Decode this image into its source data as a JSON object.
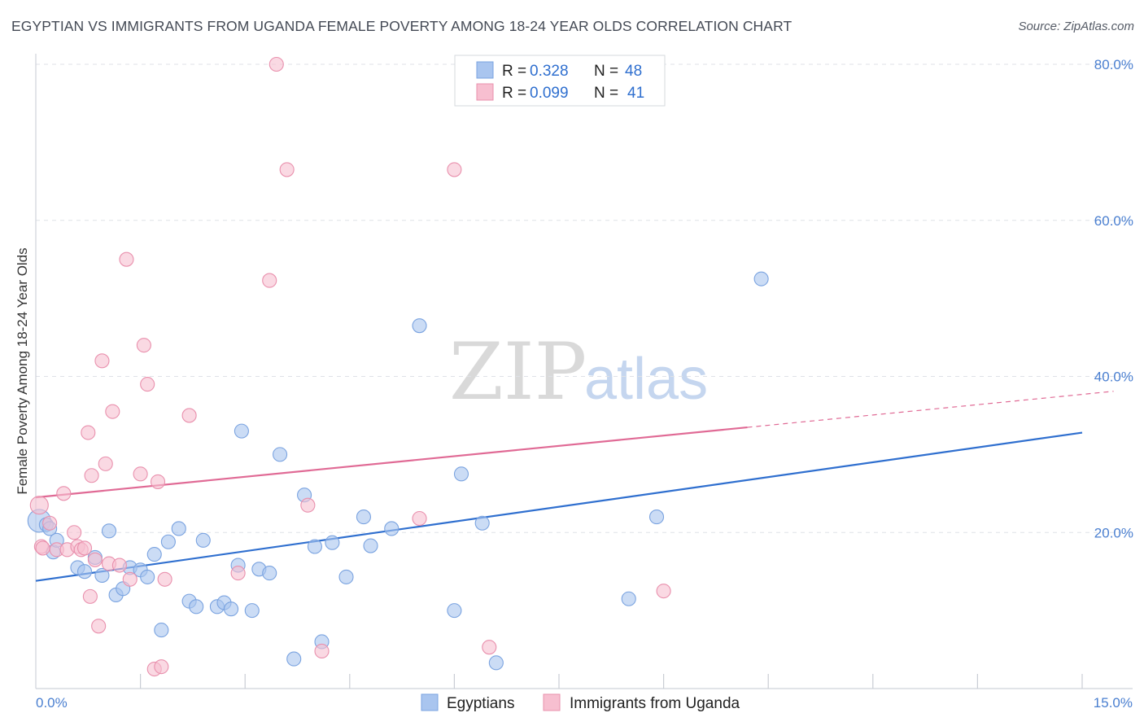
{
  "title": "EGYPTIAN VS IMMIGRANTS FROM UGANDA FEMALE POVERTY AMONG 18-24 YEAR OLDS CORRELATION CHART",
  "source": "Source: ZipAtlas.com",
  "watermark": {
    "zip": "ZIP",
    "atlas": "atlas"
  },
  "legend": {
    "r_label": "R =",
    "n_label": "N =",
    "rows": [
      {
        "r": "0.328",
        "n": "48",
        "color": "#a9c5ef",
        "stroke": "#7aa3e0"
      },
      {
        "r": "0.099",
        "n": "41",
        "color": "#f7bfd0",
        "stroke": "#e990ad"
      }
    ]
  },
  "bottom_legend": [
    "Egyptians",
    "Immigrants from Uganda"
  ],
  "chart_data": {
    "type": "scatter",
    "title": "EGYPTIAN VS IMMIGRANTS FROM UGANDA FEMALE POVERTY AMONG 18-24 YEAR OLDS CORRELATION CHART",
    "xlabel": "",
    "ylabel": "Female Poverty Among 18-24 Year Olds",
    "xlim": [
      0,
      15
    ],
    "ylim": [
      0,
      80
    ],
    "x_tick_labels": [
      "0.0%",
      "15.0%"
    ],
    "y_ticks": [
      20,
      40,
      60,
      80
    ],
    "y_tick_labels": [
      "20.0%",
      "40.0%",
      "60.0%",
      "80.0%"
    ],
    "grid": true,
    "series": [
      {
        "name": "Egyptians",
        "color": "#a9c5ef",
        "stroke": "#7aa3e0",
        "line_color": "#2f6fcf",
        "trend": {
          "x0": 0,
          "y0": 13.8,
          "x1": 15,
          "y1": 32.8,
          "solid_until": 15
        },
        "points": [
          [
            0.05,
            21.5
          ],
          [
            0.15,
            21.0
          ],
          [
            0.2,
            20.5
          ],
          [
            0.25,
            17.5
          ],
          [
            0.3,
            19.0
          ],
          [
            0.6,
            15.5
          ],
          [
            0.7,
            15.0
          ],
          [
            0.85,
            16.8
          ],
          [
            0.95,
            14.5
          ],
          [
            1.05,
            20.2
          ],
          [
            1.15,
            12.0
          ],
          [
            1.25,
            12.8
          ],
          [
            1.35,
            15.5
          ],
          [
            1.5,
            15.2
          ],
          [
            1.6,
            14.3
          ],
          [
            1.7,
            17.2
          ],
          [
            1.8,
            7.5
          ],
          [
            1.9,
            18.8
          ],
          [
            2.05,
            20.5
          ],
          [
            2.2,
            11.2
          ],
          [
            2.3,
            10.5
          ],
          [
            2.4,
            19.0
          ],
          [
            2.6,
            10.5
          ],
          [
            2.7,
            11.0
          ],
          [
            2.8,
            10.2
          ],
          [
            2.9,
            15.8
          ],
          [
            2.95,
            33.0
          ],
          [
            3.1,
            10.0
          ],
          [
            3.2,
            15.3
          ],
          [
            3.35,
            14.8
          ],
          [
            3.5,
            30.0
          ],
          [
            3.7,
            3.8
          ],
          [
            3.85,
            24.8
          ],
          [
            4.0,
            18.2
          ],
          [
            4.1,
            6.0
          ],
          [
            4.25,
            18.7
          ],
          [
            4.45,
            14.3
          ],
          [
            4.7,
            22.0
          ],
          [
            4.8,
            18.3
          ],
          [
            5.1,
            20.5
          ],
          [
            5.5,
            46.5
          ],
          [
            6.0,
            10.0
          ],
          [
            6.1,
            27.5
          ],
          [
            6.4,
            21.2
          ],
          [
            6.6,
            3.3
          ],
          [
            8.5,
            11.5
          ],
          [
            8.9,
            22.0
          ],
          [
            10.4,
            52.5
          ]
        ]
      },
      {
        "name": "Immigrants from Uganda",
        "color": "#f7bfd0",
        "stroke": "#e990ad",
        "line_color": "#e06a95",
        "trend": {
          "x0": 0,
          "y0": 24.5,
          "x1": 15,
          "y1": 37.7,
          "solid_until": 10.2
        },
        "points": [
          [
            0.05,
            23.5
          ],
          [
            0.08,
            18.2
          ],
          [
            0.1,
            18.0
          ],
          [
            0.2,
            21.2
          ],
          [
            0.3,
            17.8
          ],
          [
            0.4,
            25.0
          ],
          [
            0.45,
            17.8
          ],
          [
            0.55,
            20.0
          ],
          [
            0.6,
            18.2
          ],
          [
            0.65,
            17.8
          ],
          [
            0.75,
            32.8
          ],
          [
            0.78,
            11.8
          ],
          [
            0.8,
            27.3
          ],
          [
            0.85,
            16.5
          ],
          [
            0.9,
            8.0
          ],
          [
            0.95,
            42.0
          ],
          [
            1.0,
            28.8
          ],
          [
            1.05,
            16.0
          ],
          [
            1.1,
            35.5
          ],
          [
            1.2,
            15.8
          ],
          [
            1.3,
            55.0
          ],
          [
            1.35,
            14.0
          ],
          [
            1.5,
            27.5
          ],
          [
            1.55,
            44.0
          ],
          [
            1.6,
            39.0
          ],
          [
            1.7,
            2.5
          ],
          [
            1.75,
            26.5
          ],
          [
            1.8,
            2.8
          ],
          [
            1.85,
            14.0
          ],
          [
            2.2,
            35.0
          ],
          [
            2.9,
            14.8
          ],
          [
            3.35,
            52.3
          ],
          [
            3.45,
            80.0
          ],
          [
            3.6,
            66.5
          ],
          [
            3.9,
            23.5
          ],
          [
            4.1,
            4.8
          ],
          [
            5.5,
            21.8
          ],
          [
            6.0,
            66.5
          ],
          [
            6.5,
            5.3
          ],
          [
            9.0,
            12.5
          ],
          [
            0.7,
            18.0
          ]
        ]
      }
    ]
  }
}
